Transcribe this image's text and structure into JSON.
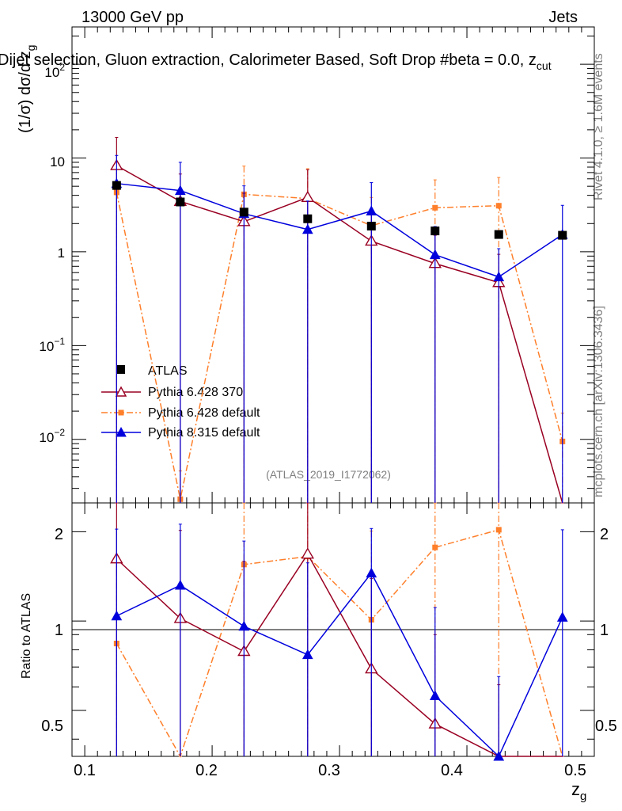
{
  "header": {
    "energy_label": "13000 GeV pp",
    "category_label": "Jets",
    "plot_title": "Dijet selection, Gluon extraction, Calorimeter Based, Soft Drop #beta = 0.0, z",
    "plot_title_subscript": "cut",
    "analysis_tag": "(ATLAS_2019_I1772062)"
  },
  "side_labels": {
    "rivet": "Rivet 4.1.0, ≥ 1.6M events",
    "mcplots": "mcplots.cern.ch [arXiv:1306.3436]"
  },
  "axes": {
    "main_ylabel": "(1/σ) dσ/d z",
    "main_ylabel_subscript": "g",
    "ratio_ylabel": "Ratio to ATLAS",
    "xlabel": "z",
    "xlabel_subscript": "g",
    "main_ytick_labels": {
      "p2": "2",
      "p1": "10",
      "p0": "1",
      "m1": "−1",
      "m2": "−2",
      "base": "10"
    },
    "ratio_ytick_labels": [
      "0.5",
      "1",
      "2"
    ],
    "xtick_labels": [
      "0.1",
      "0.2",
      "0.3",
      "0.4",
      "0.5"
    ]
  },
  "legend": {
    "atlas": "ATLAS",
    "p6_370": "Pythia 6.428 370",
    "p6_def": "Pythia 6.428 default",
    "p8_def": "Pythia 8.315 default"
  },
  "colors": {
    "atlas": "#000000",
    "p6_370": "#990022",
    "p6_def": "#ff7f2a",
    "p8_def": "#0000dd",
    "side_text": "#808080"
  },
  "chart_data": {
    "type": "scatter",
    "x_range": [
      0.09,
      0.5
    ],
    "main_ylog": true,
    "main_ylim": [
      0.0021,
      250
    ],
    "ratio_ylog": true,
    "ratio_ylim": [
      0.35,
      2.5
    ],
    "x": [
      0.125,
      0.175,
      0.225,
      0.275,
      0.325,
      0.375,
      0.425,
      0.475
    ],
    "series": [
      {
        "name": "ATLAS",
        "key": "atlas",
        "marker": "square",
        "values": [
          5.1,
          3.4,
          2.65,
          2.25,
          1.88,
          1.67,
          1.53,
          1.5
        ],
        "err_lo": [
          5.1,
          3.4,
          2.65,
          2.25,
          1.88,
          1.67,
          1.53,
          1.5
        ],
        "err_hi": [
          0,
          0,
          0,
          0,
          0,
          0,
          0,
          0
        ],
        "ratio": [
          1,
          1,
          1,
          1,
          1,
          1,
          1,
          1
        ]
      },
      {
        "name": "Pythia 6.428 370",
        "key": "p6_370",
        "marker": "triangle-open",
        "values": [
          8.3,
          3.45,
          2.1,
          3.8,
          1.3,
          0.75,
          0.47,
          0.002
        ],
        "err_lo": [
          8.3,
          3.45,
          2.1,
          3.8,
          1.3,
          0.75,
          0.47,
          0.002
        ],
        "err_hi": [
          8.3,
          3.3,
          2.1,
          3.7,
          1.3,
          0.75,
          0.47,
          0
        ],
        "ratio": [
          1.62,
          1.02,
          0.79,
          1.68,
          0.69,
          0.45,
          0.31,
          0.0013
        ],
        "ratio_err_lo": [
          1.62,
          1.02,
          0.79,
          1.68,
          0.69,
          0.45,
          0.31,
          0.0013
        ],
        "ratio_err_hi": [
          1.0,
          1.0,
          0.8,
          1.6,
          0.7,
          0.45,
          0.3,
          0
        ]
      },
      {
        "name": "Pythia 6.428 default",
        "key": "p6_def",
        "marker": "square-small",
        "values": [
          4.3,
          0.0023,
          4.1,
          3.7,
          1.9,
          2.95,
          3.1,
          0.0095
        ],
        "err_lo": [
          4.3,
          0.0023,
          4.1,
          3.7,
          1.9,
          2.95,
          3.1,
          0.0095
        ],
        "err_hi": [
          4.3,
          0.0023,
          4.1,
          4.0,
          1.9,
          2.9,
          3.1,
          0.0095
        ],
        "ratio": [
          0.84,
          0.0007,
          1.55,
          1.65,
          1.01,
          1.77,
          2.03,
          0.0063
        ],
        "ratio_err_lo": [
          0.84,
          0.0007,
          1.55,
          1.65,
          1.01,
          1.77,
          2.03,
          0.0063
        ],
        "ratio_err_hi": [
          0.8,
          0,
          1.6,
          1.8,
          1.0,
          1.75,
          2.0,
          0
        ]
      },
      {
        "name": "Pythia 8.315 default",
        "key": "p8_def",
        "marker": "triangle",
        "values": [
          5.35,
          4.5,
          2.55,
          1.73,
          2.72,
          0.93,
          0.54,
          1.53
        ],
        "err_lo": [
          5.35,
          4.5,
          2.55,
          1.73,
          2.72,
          0.93,
          0.54,
          1.53
        ],
        "err_hi": [
          5.3,
          4.5,
          2.5,
          1.75,
          2.75,
          0.93,
          0.54,
          1.6
        ],
        "ratio": [
          1.04,
          1.32,
          0.96,
          0.77,
          1.45,
          0.56,
          0.35,
          1.03
        ],
        "ratio_err_lo": [
          1.04,
          1.32,
          0.96,
          0.77,
          1.45,
          0.56,
          0.35,
          1.03
        ],
        "ratio_err_hi": [
          1.0,
          0.8,
          0.9,
          0.8,
          0.6,
          0.55,
          0.3,
          1.0
        ]
      }
    ]
  }
}
